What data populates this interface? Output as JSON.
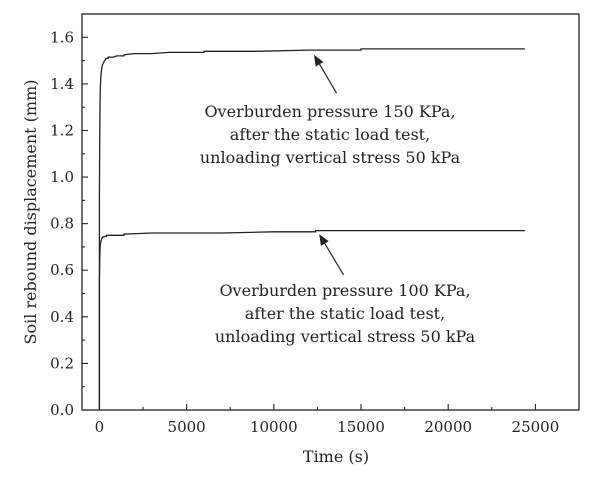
{
  "chart_data": {
    "type": "line",
    "title": "",
    "xlabel": "Time (s)",
    "ylabel": "Soil rebound displacement (mm)",
    "xlim": [
      -1000,
      27500
    ],
    "ylim": [
      0,
      1.7
    ],
    "x_ticks": [
      0,
      5000,
      10000,
      15000,
      20000,
      25000
    ],
    "x_tick_labels": [
      "0",
      "5000",
      "10000",
      "15000",
      "20000",
      "25000"
    ],
    "y_ticks": [
      0.0,
      0.2,
      0.4,
      0.6,
      0.8,
      1.0,
      1.2,
      1.4,
      1.6
    ],
    "y_tick_labels": [
      "0.0",
      "0.2",
      "0.4",
      "0.6",
      "0.8",
      "1.0",
      "1.2",
      "1.4",
      "1.6"
    ],
    "grid": false,
    "legend": "none",
    "color": "#222222",
    "series": [
      {
        "points": [
          [
            0,
            0.0
          ],
          [
            0,
            0.9
          ],
          [
            15,
            1.15
          ],
          [
            30,
            1.3
          ],
          [
            50,
            1.38
          ],
          [
            80,
            1.43
          ],
          [
            120,
            1.46
          ],
          [
            170,
            1.48
          ],
          [
            230,
            1.49
          ],
          [
            300,
            1.5
          ],
          [
            400,
            1.51
          ],
          [
            500,
            1.51
          ],
          [
            500,
            1.515
          ],
          [
            800,
            1.515
          ],
          [
            1000,
            1.52
          ],
          [
            1400,
            1.52
          ],
          [
            1400,
            1.525
          ],
          [
            2000,
            1.53
          ],
          [
            3000,
            1.53
          ],
          [
            4000,
            1.535
          ],
          [
            6000,
            1.535
          ],
          [
            6000,
            1.54
          ],
          [
            9000,
            1.54
          ],
          [
            12000,
            1.545
          ],
          [
            15000,
            1.545
          ],
          [
            15000,
            1.55
          ],
          [
            20000,
            1.55
          ],
          [
            24400,
            1.55
          ]
        ]
      },
      {
        "points": [
          [
            0,
            0.0
          ],
          [
            0,
            0.55
          ],
          [
            20,
            0.66
          ],
          [
            40,
            0.7
          ],
          [
            70,
            0.72
          ],
          [
            110,
            0.73
          ],
          [
            160,
            0.74
          ],
          [
            250,
            0.745
          ],
          [
            400,
            0.745
          ],
          [
            400,
            0.75
          ],
          [
            1400,
            0.75
          ],
          [
            1400,
            0.755
          ],
          [
            3000,
            0.76
          ],
          [
            7000,
            0.76
          ],
          [
            10000,
            0.765
          ],
          [
            12400,
            0.765
          ],
          [
            12400,
            0.77
          ],
          [
            18000,
            0.77
          ],
          [
            24400,
            0.77
          ]
        ]
      }
    ],
    "annotations": [
      {
        "lines": [
          "Overburden pressure 150 KPa,",
          "after the static load test,",
          "unloading vertical stress 50 kPa"
        ],
        "arrow_tip": [
          12300,
          1.525
        ],
        "arrow_base": [
          13600,
          1.36
        ]
      },
      {
        "lines": [
          "Overburden pressure 100 KPa,",
          "after the static load test,",
          "unloading vertical stress 50 kPa"
        ],
        "arrow_tip": [
          12600,
          0.755
        ],
        "arrow_base": [
          14000,
          0.58
        ]
      }
    ]
  }
}
